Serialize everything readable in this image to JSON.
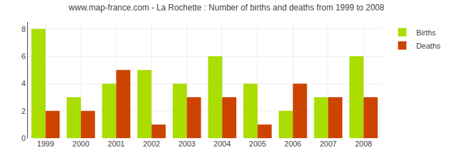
{
  "chart_data": {
    "type": "bar",
    "title": "www.map-france.com - La Rochette : Number of births and deaths from 1999 to 2008",
    "categories": [
      "1999",
      "2000",
      "2001",
      "2002",
      "2003",
      "2004",
      "2005",
      "2006",
      "2007",
      "2008"
    ],
    "series": [
      {
        "name": "Births",
        "color": "#aadd00",
        "values": [
          8,
          3,
          4,
          5,
          4,
          6,
          4,
          2,
          3,
          6
        ]
      },
      {
        "name": "Deaths",
        "color": "#cc4400",
        "values": [
          2,
          2,
          5,
          1,
          3,
          3,
          1,
          4,
          3,
          3
        ]
      }
    ],
    "ylim": [
      0,
      8.5
    ],
    "yticks": [
      0,
      2,
      4,
      6,
      8
    ],
    "grid": true,
    "legend": "upper right"
  }
}
